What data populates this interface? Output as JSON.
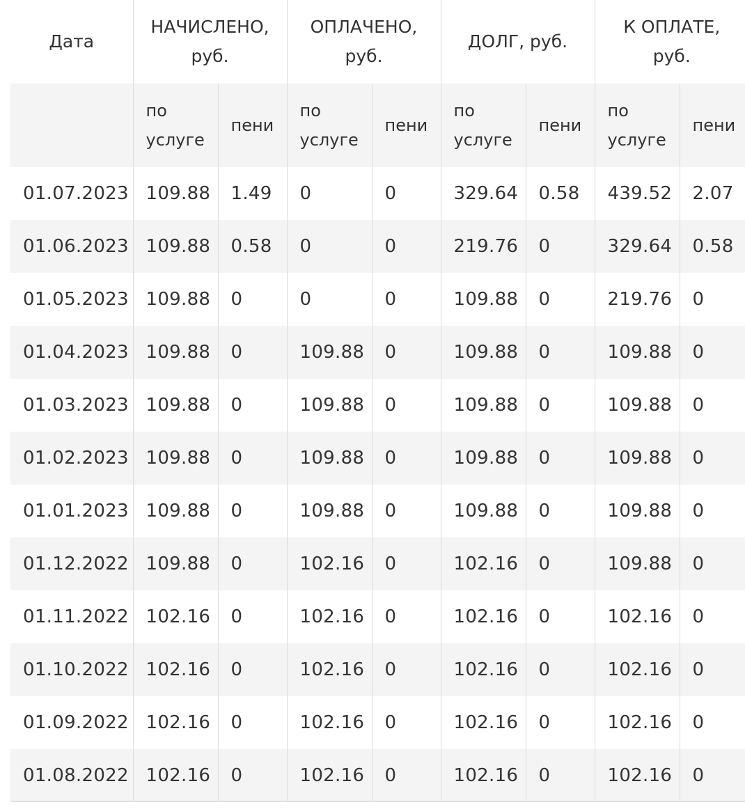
{
  "headers": {
    "date": "Дата",
    "groups": [
      {
        "line1": "НАЧИСЛЕНО,",
        "line2": "руб."
      },
      {
        "line1": "ОПЛАЧЕНО,",
        "line2": "руб."
      },
      {
        "line1": "ДОЛГ, руб.",
        "line2": ""
      },
      {
        "line1": "К ОПЛАТЕ,",
        "line2": "руб."
      }
    ],
    "sub_service_line1": "по",
    "sub_service_line2": "услуге",
    "sub_penalty": "пени"
  },
  "rows": [
    {
      "date": "01.07.2023",
      "cells": [
        "109.88",
        "1.49",
        "0",
        "0",
        "329.64",
        "0.58",
        "439.52",
        "2.07"
      ]
    },
    {
      "date": "01.06.2023",
      "cells": [
        "109.88",
        "0.58",
        "0",
        "0",
        "219.76",
        "0",
        "329.64",
        "0.58"
      ]
    },
    {
      "date": "01.05.2023",
      "cells": [
        "109.88",
        "0",
        "0",
        "0",
        "109.88",
        "0",
        "219.76",
        "0"
      ]
    },
    {
      "date": "01.04.2023",
      "cells": [
        "109.88",
        "0",
        "109.88",
        "0",
        "109.88",
        "0",
        "109.88",
        "0"
      ]
    },
    {
      "date": "01.03.2023",
      "cells": [
        "109.88",
        "0",
        "109.88",
        "0",
        "109.88",
        "0",
        "109.88",
        "0"
      ]
    },
    {
      "date": "01.02.2023",
      "cells": [
        "109.88",
        "0",
        "109.88",
        "0",
        "109.88",
        "0",
        "109.88",
        "0"
      ]
    },
    {
      "date": "01.01.2023",
      "cells": [
        "109.88",
        "0",
        "109.88",
        "0",
        "109.88",
        "0",
        "109.88",
        "0"
      ]
    },
    {
      "date": "01.12.2022",
      "cells": [
        "109.88",
        "0",
        "102.16",
        "0",
        "102.16",
        "0",
        "109.88",
        "0"
      ]
    },
    {
      "date": "01.11.2022",
      "cells": [
        "102.16",
        "0",
        "102.16",
        "0",
        "102.16",
        "0",
        "102.16",
        "0"
      ]
    },
    {
      "date": "01.10.2022",
      "cells": [
        "102.16",
        "0",
        "102.16",
        "0",
        "102.16",
        "0",
        "102.16",
        "0"
      ]
    },
    {
      "date": "01.09.2022",
      "cells": [
        "102.16",
        "0",
        "102.16",
        "0",
        "102.16",
        "0",
        "102.16",
        "0"
      ]
    },
    {
      "date": "01.08.2022",
      "cells": [
        "102.16",
        "0",
        "102.16",
        "0",
        "102.16",
        "0",
        "102.16",
        "0"
      ]
    }
  ]
}
